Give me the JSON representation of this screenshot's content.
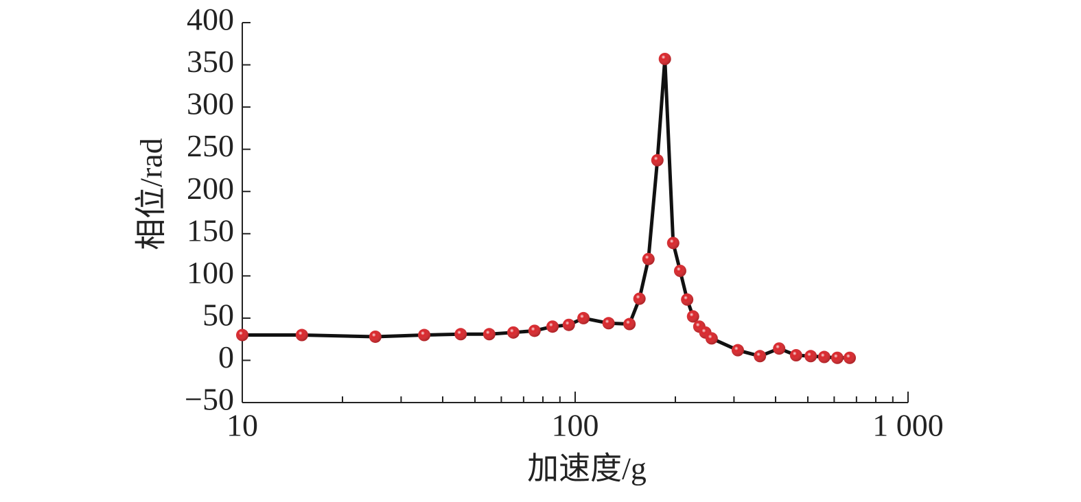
{
  "chart_data": {
    "type": "line",
    "x_label": "加速度/g",
    "y_label": "相位/rad",
    "xscale": "log",
    "x": [
      10,
      15.1,
      25.1,
      35.2,
      45.3,
      55.2,
      65.2,
      75.5,
      85.5,
      95.7,
      105.9,
      126,
      145.6,
      156,
      166,
      176.6,
      186,
      197,
      206.7,
      217,
      226,
      236,
      246,
      257,
      308,
      359,
      410,
      461,
      510,
      560,
      613,
      668
    ],
    "values": [
      30,
      30,
      28,
      30,
      31,
      31,
      33,
      35,
      40,
      42,
      50,
      44,
      43,
      73,
      120,
      237,
      357,
      139,
      106,
      72,
      52,
      40,
      33,
      26,
      12,
      5,
      14,
      6,
      5,
      4,
      3,
      3
    ],
    "line_color": "#111111",
    "marker_color": "#d9262b",
    "xlim": [
      10,
      1000
    ],
    "xticks": [
      10,
      100,
      {
        "value": 1000,
        "label": "1 000"
      }
    ],
    "xminorticks": [
      20,
      30,
      40,
      50,
      60,
      70,
      80,
      90,
      200,
      300,
      400,
      500,
      600,
      700,
      800,
      900
    ],
    "ylim": [
      -50,
      400
    ],
    "yticks": [
      {
        "value": -50,
        "label": "−50"
      },
      0,
      50,
      100,
      150,
      200,
      250,
      300,
      350,
      400
    ]
  }
}
